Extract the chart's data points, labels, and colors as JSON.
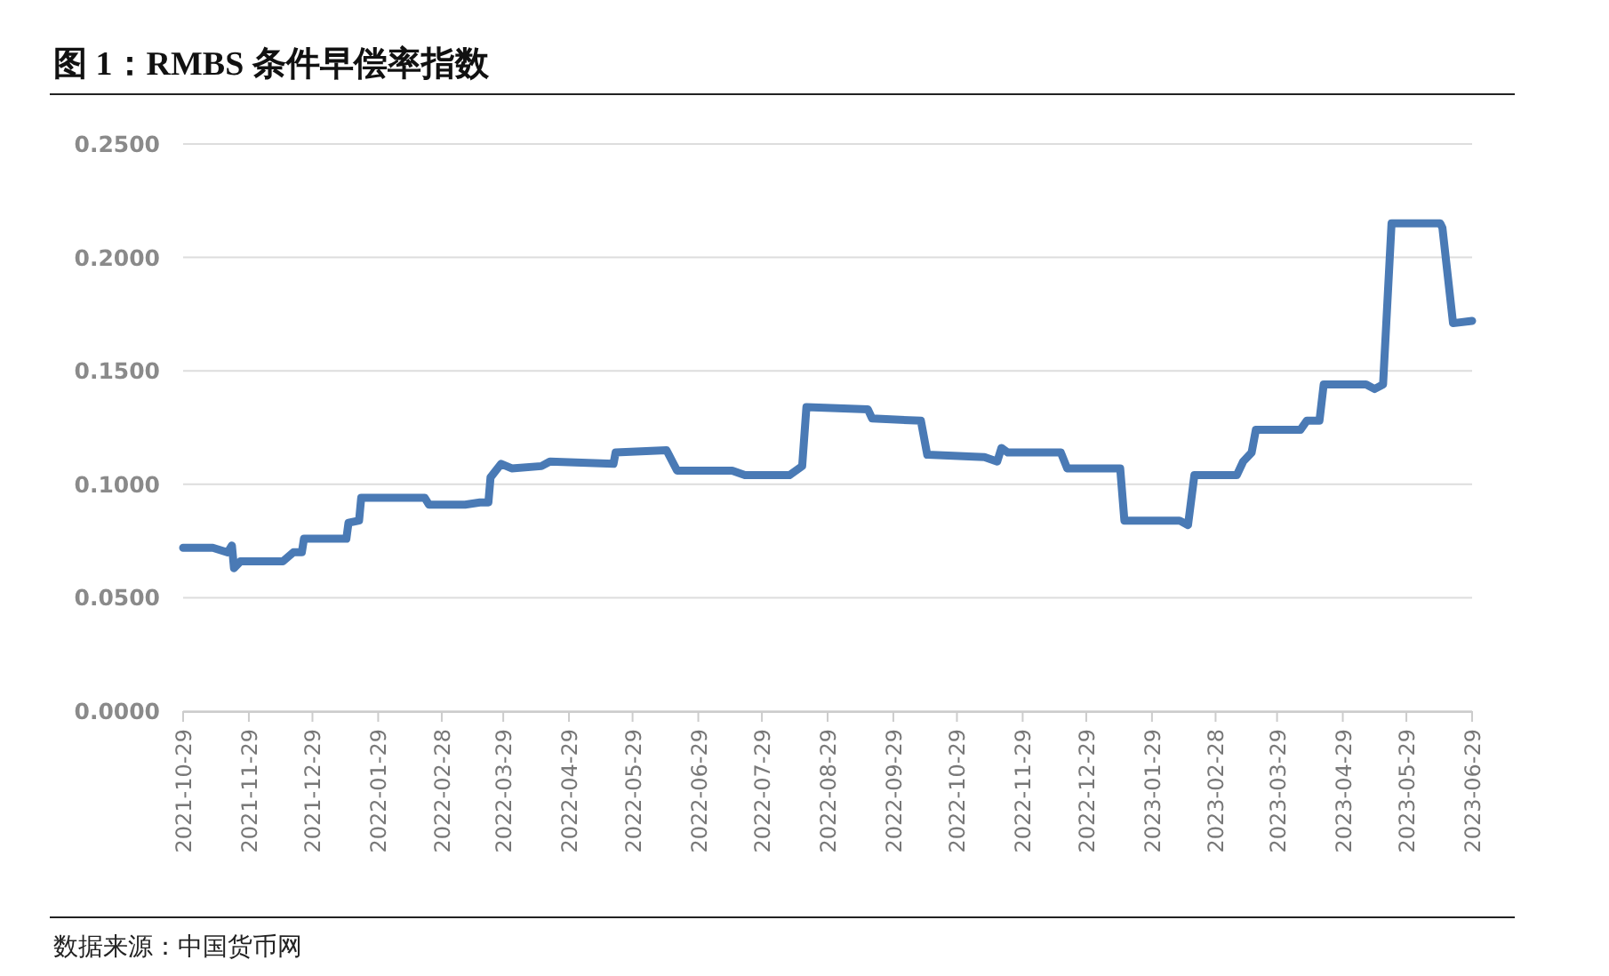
{
  "chart_data": {
    "type": "line",
    "title": "图 1：RMBS 条件早偿率指数",
    "annotations": [
      "数据来源：中国货币网"
    ],
    "x": [
      "2021-10-29",
      "2021-11-12",
      "2021-11-19",
      "2021-11-21",
      "2021-11-22",
      "2021-11-25",
      "2021-12-15",
      "2021-12-20",
      "2021-12-24",
      "2021-12-25",
      "2022-01-14",
      "2022-01-15",
      "2022-01-20",
      "2022-01-21",
      "2022-02-20",
      "2022-02-22",
      "2022-03-11",
      "2022-03-18",
      "2022-03-22",
      "2022-03-23",
      "2022-03-28",
      "2022-04-02",
      "2022-04-16",
      "2022-04-20",
      "2022-05-20",
      "2022-05-21",
      "2022-06-14",
      "2022-06-19",
      "2022-07-15",
      "2022-07-21",
      "2022-08-11",
      "2022-08-17",
      "2022-08-19",
      "2022-09-17",
      "2022-09-19",
      "2022-10-12",
      "2022-10-15",
      "2022-11-11",
      "2022-11-17",
      "2022-11-19",
      "2022-11-22",
      "2022-12-17",
      "2022-12-20",
      "2023-01-14",
      "2023-01-16",
      "2023-02-11",
      "2023-02-15",
      "2023-02-18",
      "2023-03-10",
      "2023-03-13",
      "2023-03-17",
      "2023-03-19",
      "2023-04-09",
      "2023-04-12",
      "2023-04-18",
      "2023-04-20",
      "2023-05-10",
      "2023-05-14",
      "2023-05-18",
      "2023-05-22",
      "2023-06-14",
      "2023-06-15",
      "2023-06-20",
      "2023-06-29"
    ],
    "series": [
      {
        "color": "#4a7ab5",
        "values": [
          0.072,
          0.072,
          0.07,
          0.073,
          0.063,
          0.066,
          0.066,
          0.07,
          0.07,
          0.076,
          0.076,
          0.083,
          0.084,
          0.094,
          0.094,
          0.091,
          0.091,
          0.092,
          0.092,
          0.103,
          0.109,
          0.107,
          0.108,
          0.11,
          0.109,
          0.114,
          0.115,
          0.106,
          0.106,
          0.104,
          0.104,
          0.108,
          0.134,
          0.133,
          0.129,
          0.128,
          0.113,
          0.112,
          0.11,
          0.116,
          0.114,
          0.114,
          0.107,
          0.107,
          0.084,
          0.084,
          0.082,
          0.104,
          0.104,
          0.11,
          0.114,
          0.124,
          0.124,
          0.128,
          0.128,
          0.144,
          0.144,
          0.142,
          0.144,
          0.215,
          0.215,
          0.213,
          0.171,
          0.172
        ]
      }
    ],
    "xlim": [
      "2021-10-29",
      "2023-06-29"
    ],
    "xticks": [
      "2021-10-29",
      "2021-11-29",
      "2021-12-29",
      "2022-01-29",
      "2022-02-28",
      "2022-03-29",
      "2022-04-29",
      "2022-05-29",
      "2022-06-29",
      "2022-07-29",
      "2022-08-29",
      "2022-09-29",
      "2022-10-29",
      "2022-11-29",
      "2022-12-29",
      "2023-01-29",
      "2023-02-28",
      "2023-03-29",
      "2023-04-29",
      "2023-05-29",
      "2023-06-29"
    ],
    "ylim": [
      0,
      0.25
    ],
    "yticks": [
      {
        "value": 0,
        "label": "0.0000"
      },
      {
        "value": 0.05,
        "label": "0.0500"
      },
      {
        "value": 0.1,
        "label": "0.1000"
      },
      {
        "value": 0.15,
        "label": "0.1500"
      },
      {
        "value": 0.2,
        "label": "0.2000"
      },
      {
        "value": 0.25,
        "label": "0.2500"
      }
    ],
    "grid": "y",
    "marker": "none",
    "line_style": "solid"
  }
}
